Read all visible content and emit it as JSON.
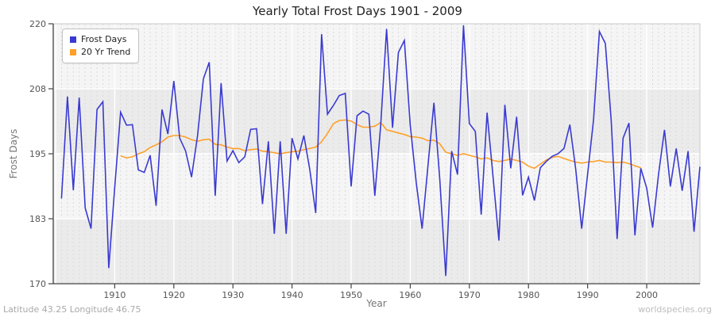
{
  "footer": {
    "coordinates": "Latitude 43.25 Longitude 46.75",
    "site": "worldspecies.org"
  },
  "chart_data": {
    "type": "line",
    "title": "Yearly Total Frost Days 1901 - 2009",
    "xlabel": "Year",
    "ylabel": "Frost Days",
    "ylim": [
      170,
      220
    ],
    "xlim": [
      1899.6,
      2009
    ],
    "grid": "yearly dashed vertical lines, white decade lines, alternating horizontal bands",
    "legend_position": "top-left",
    "x_ticks": [
      1910,
      1920,
      1930,
      1940,
      1950,
      1960,
      1970,
      1980,
      1990,
      2000
    ],
    "y_ticks": [
      {
        "value": 220,
        "label": "220"
      },
      {
        "value": 207.5,
        "label": "208"
      },
      {
        "value": 195,
        "label": "195"
      },
      {
        "value": 182.5,
        "label": "183"
      },
      {
        "value": 170,
        "label": "170"
      }
    ],
    "series": [
      {
        "name": "Frost Days",
        "color": "#3a3ad2",
        "x_start": 1901,
        "values": [
          186.4,
          206,
          188,
          205.8,
          184.6,
          180.6,
          203.5,
          205,
          173,
          188.5,
          203,
          200.5,
          200.6,
          191.9,
          191.4,
          194.7,
          185,
          203.5,
          198.8,
          209,
          198,
          195.5,
          190.5,
          198.4,
          209.4,
          212.6,
          186.9,
          208.6,
          193.6,
          195.6,
          193.3,
          194.4,
          199.7,
          199.8,
          185.3,
          197.4,
          179.6,
          197.4,
          179.6,
          198,
          194,
          198.5,
          192,
          183.6,
          218,
          202.6,
          204.3,
          206.2,
          206.6,
          188.7,
          202.3,
          203.2,
          202.6,
          186.9,
          200.5,
          219,
          200,
          214.5,
          216.8,
          200.5,
          189.5,
          180.6,
          192.7,
          204.8,
          190,
          171.5,
          195.5,
          191,
          219.7,
          200.8,
          199.3,
          183.3,
          202.9,
          190.6,
          178.3,
          204.4,
          192.2,
          202.1,
          187,
          190.5,
          186,
          192.3,
          193.5,
          194.5,
          195,
          196,
          200.6,
          192,
          180.6,
          191,
          201.5,
          218.5,
          216.2,
          201.3,
          178.6,
          198,
          200.9,
          179.3,
          192.2,
          188.4,
          180.8,
          191,
          199.6,
          188.7,
          196,
          187.9,
          195.5,
          180,
          192.5
        ]
      },
      {
        "name": "20 Yr Trend",
        "color": "#ffa029",
        "x_start": 1911,
        "values": [
          194.6,
          194.2,
          194.4,
          195.0,
          195.4,
          196.2,
          196.7,
          197.3,
          198.2,
          198.5,
          198.5,
          198.2,
          197.7,
          197.4,
          197.7,
          197.8,
          196.8,
          196.7,
          196.3,
          196.0,
          196.0,
          195.6,
          195.8,
          195.9,
          195.5,
          195.4,
          195.2,
          195.0,
          195.2,
          195.4,
          195.5,
          195.8,
          196.0,
          196.3,
          197.3,
          198.9,
          200.8,
          201.4,
          201.5,
          201.3,
          200.6,
          200.1,
          200.1,
          200.3,
          201.0,
          199.6,
          199.3,
          199.0,
          198.7,
          198.3,
          198.2,
          198.0,
          197.5,
          197.6,
          196.9,
          195.3,
          195.0,
          194.7,
          195.0,
          194.7,
          194.4,
          194.0,
          194.2,
          193.7,
          193.5,
          193.7,
          194.0,
          193.7,
          193.4,
          192.6,
          192.2,
          193.0,
          193.8,
          194.3,
          194.5,
          194.1,
          193.7,
          193.4,
          193.2,
          193.4,
          193.5,
          193.7,
          193.4,
          193.4,
          193.3,
          193.4,
          193.1,
          192.7,
          192.3
        ]
      }
    ]
  }
}
